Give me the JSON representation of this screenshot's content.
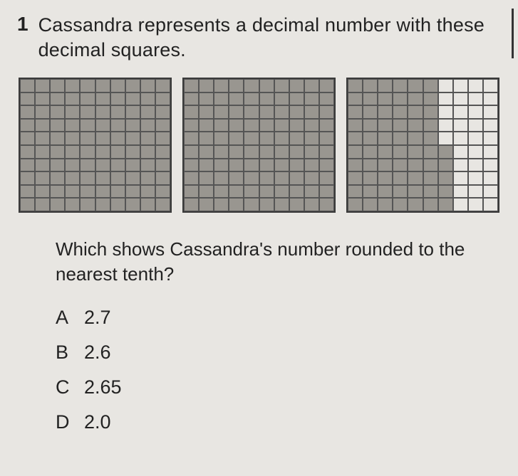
{
  "question": {
    "number": "1",
    "prompt": "Cassandra represents a decimal number with these decimal squares.",
    "subprompt": "Which shows Cassandra's number rounded to the nearest tenth?"
  },
  "squares": [
    {
      "type": "decimal-square",
      "grid_size": 10,
      "fill_pattern": "full",
      "filled_columns": 10,
      "partial_cells": 0,
      "border_color": "#3a3a3a",
      "fill_color": "#999690",
      "grid_line_color": "#555555",
      "background_color": "#e8e6e2"
    },
    {
      "type": "decimal-square",
      "grid_size": 10,
      "fill_pattern": "full",
      "filled_columns": 10,
      "partial_cells": 0,
      "border_color": "#3a3a3a",
      "fill_color": "#999690",
      "grid_line_color": "#555555",
      "background_color": "#e8e6e2"
    },
    {
      "type": "decimal-square",
      "grid_size": 10,
      "fill_pattern": "columns-then-partial",
      "filled_columns": 6,
      "partial_cells": 5,
      "border_color": "#3a3a3a",
      "fill_color": "#999690",
      "grid_line_color": "#555555",
      "background_color": "#e8e6e2"
    }
  ],
  "choices": [
    {
      "letter": "A",
      "value": "2.7"
    },
    {
      "letter": "B",
      "value": "2.6"
    },
    {
      "letter": "C",
      "value": "2.65"
    },
    {
      "letter": "D",
      "value": "2.0"
    }
  ],
  "style": {
    "page_background": "#e8e6e2",
    "text_color": "#2a2a2a",
    "font_family": "Arial",
    "qnum_fontsize": 28,
    "qtext_fontsize": 27,
    "subq_fontsize": 26,
    "choice_fontsize": 27
  }
}
